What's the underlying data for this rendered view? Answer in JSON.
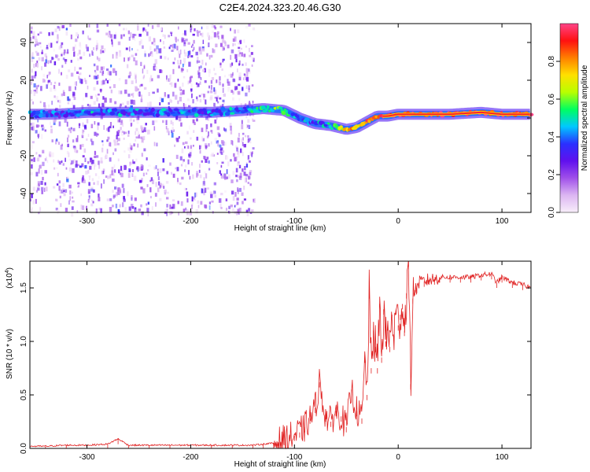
{
  "chart_data": [
    {
      "type": "heatmap",
      "title": "C2E4.2024.323.20.46.G30",
      "xlabel": "Height of straight line (km)",
      "ylabel": "Frequency (Hz)",
      "xlim": [
        -355,
        128
      ],
      "ylim": [
        -50,
        50
      ],
      "x_ticks": [
        -300,
        -200,
        -100,
        0,
        100
      ],
      "x_tick_labels": [
        "-300",
        "-200",
        "-100",
        "0",
        "100"
      ],
      "y_ticks": [
        -40,
        -20,
        0,
        20,
        40
      ],
      "y_tick_labels": [
        "-40",
        "-20",
        "0",
        "20",
        "40"
      ],
      "noise_region": {
        "x_range": [
          -355,
          -140
        ],
        "description_level": 0.15
      },
      "ridge": [
        {
          "x": -355,
          "y": 2,
          "a": 0.35
        },
        {
          "x": -330,
          "y": 2,
          "a": 0.35
        },
        {
          "x": -300,
          "y": 3,
          "a": 0.4
        },
        {
          "x": -270,
          "y": 3,
          "a": 0.38
        },
        {
          "x": -240,
          "y": 3,
          "a": 0.36
        },
        {
          "x": -210,
          "y": 3,
          "a": 0.4
        },
        {
          "x": -180,
          "y": 3,
          "a": 0.38
        },
        {
          "x": -150,
          "y": 4,
          "a": 0.4
        },
        {
          "x": -130,
          "y": 5,
          "a": 0.5
        },
        {
          "x": -110,
          "y": 4,
          "a": 0.55
        },
        {
          "x": -95,
          "y": 0,
          "a": 0.4
        },
        {
          "x": -80,
          "y": -3,
          "a": 0.4
        },
        {
          "x": -65,
          "y": -4,
          "a": 0.45
        },
        {
          "x": -50,
          "y": -6,
          "a": 0.7
        },
        {
          "x": -40,
          "y": -5,
          "a": 0.8
        },
        {
          "x": -30,
          "y": -2,
          "a": 0.85
        },
        {
          "x": -20,
          "y": 1,
          "a": 0.9
        },
        {
          "x": -10,
          "y": 1,
          "a": 0.9
        },
        {
          "x": 0,
          "y": 2,
          "a": 0.95
        },
        {
          "x": 20,
          "y": 2,
          "a": 0.95
        },
        {
          "x": 50,
          "y": 2,
          "a": 0.95
        },
        {
          "x": 80,
          "y": 3,
          "a": 0.95
        },
        {
          "x": 100,
          "y": 2,
          "a": 0.95
        },
        {
          "x": 128,
          "y": 2,
          "a": 0.95
        }
      ],
      "colorbar": {
        "label": "Normalized spectral amplitude",
        "range": [
          0,
          1
        ],
        "ticks": [
          0.0,
          0.2,
          0.4,
          0.6,
          0.8
        ],
        "tick_labels": [
          "0.0",
          "0.2",
          "0.4",
          "0.6",
          "0.8"
        ],
        "colors": [
          "#f8eefa",
          "#dcb6f2",
          "#a050ea",
          "#6010ee",
          "#2a30ff",
          "#00c8ff",
          "#00ff60",
          "#b8ff00",
          "#ffe000",
          "#ff8000",
          "#ff1010",
          "#ff4488"
        ]
      }
    },
    {
      "type": "line",
      "xlabel": "Height of straight line (km)",
      "ylabel": "SNR (10 * v/v)",
      "y_multiplier": "(x10",
      "y_multiplier_exp": "4",
      "y_multiplier_close": ")",
      "xlim": [
        -355,
        128
      ],
      "ylim": [
        0,
        1.75
      ],
      "x_ticks": [
        -300,
        -200,
        -100,
        0,
        100
      ],
      "x_tick_labels": [
        "-300",
        "-200",
        "-100",
        "0",
        "100"
      ],
      "y_ticks": [
        0.0,
        0.5,
        1.0,
        1.5
      ],
      "y_tick_labels": [
        "0.0",
        "0.5",
        "1.0",
        "1.5"
      ],
      "line_color": "#e02020",
      "series": [
        {
          "x": [
            -355,
            -340,
            -320,
            -300,
            -280,
            -270,
            -260,
            -240,
            -220,
            -200,
            -180,
            -160,
            -140,
            -130,
            -120,
            -110,
            -100,
            -95,
            -90,
            -85,
            -80,
            -76,
            -70,
            -65,
            -60,
            -55,
            -50,
            -45,
            -40,
            -35,
            -32,
            -30,
            -28,
            -26,
            -24,
            -22,
            -20,
            -18,
            -16,
            -14,
            -12,
            -10,
            -8,
            -6,
            -4,
            -2,
            0,
            2,
            4,
            6,
            8,
            10,
            12,
            14,
            16,
            18,
            20,
            25,
            30,
            35,
            40,
            50,
            60,
            70,
            80,
            90,
            95,
            100,
            110,
            120,
            128
          ],
          "y": [
            0.02,
            0.02,
            0.03,
            0.03,
            0.04,
            0.09,
            0.03,
            0.03,
            0.03,
            0.03,
            0.03,
            0.03,
            0.03,
            0.04,
            0.05,
            0.08,
            0.12,
            0.15,
            0.2,
            0.28,
            0.38,
            0.62,
            0.3,
            0.25,
            0.35,
            0.3,
            0.2,
            0.55,
            0.35,
            0.28,
            0.85,
            0.5,
            1.45,
            0.75,
            1.1,
            0.95,
            0.75,
            1.35,
            0.85,
            1.3,
            1.0,
            1.15,
            0.95,
            1.25,
            1.05,
            1.3,
            1.15,
            1.25,
            1.35,
            1.1,
            1.45,
            1.75,
            0.6,
            1.4,
            1.48,
            1.5,
            1.55,
            1.56,
            1.58,
            1.58,
            1.6,
            1.6,
            1.6,
            1.6,
            1.62,
            1.63,
            1.55,
            1.6,
            1.55,
            1.53,
            1.5
          ]
        }
      ]
    }
  ]
}
